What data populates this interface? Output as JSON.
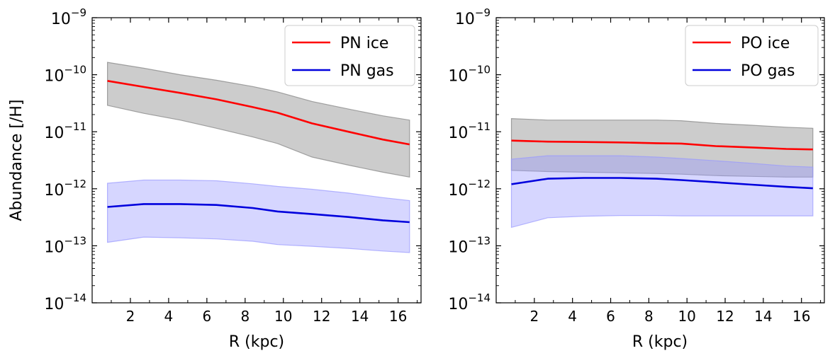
{
  "chart_data": [
    {
      "type": "line",
      "id": "pn",
      "xlabel": "R (kpc)",
      "ylabel": "Abundance [/H]",
      "yscale": "log",
      "xlim": [
        0,
        17.2
      ],
      "ylim_exp": [
        -14,
        -9
      ],
      "xticks": [
        2,
        4,
        6,
        8,
        10,
        12,
        14,
        16
      ],
      "xtick_labels": [
        "2",
        "4",
        "6",
        "8",
        "10",
        "12",
        "14",
        "16"
      ],
      "ytick_exps": [
        -14,
        -13,
        -12,
        -11,
        -10,
        -9
      ],
      "ytick_labels": [
        "10",
        "10",
        "10",
        "10",
        "10",
        "10"
      ],
      "ytick_sup": [
        "−14",
        "−13",
        "−12",
        "−11",
        "−10",
        "−9"
      ],
      "legend_position": "top-right",
      "series": [
        {
          "name": "PN ice",
          "color": "#ff0000",
          "band_color": "#808080",
          "x": [
            0.8,
            2.7,
            4.6,
            6.5,
            8.4,
            9.7,
            11.5,
            13.4,
            15.2,
            16.6
          ],
          "y": [
            7.8e-11,
            6.1e-11,
            4.8e-11,
            3.7e-11,
            2.7e-11,
            2.15e-11,
            1.4e-11,
            1e-11,
            7.3e-12,
            6e-12
          ],
          "upper": [
            1.65e-10,
            1.3e-10,
            1e-10,
            8e-11,
            6.2e-11,
            5e-11,
            3.4e-11,
            2.5e-11,
            1.9e-11,
            1.6e-11
          ],
          "lower": [
            2.9e-11,
            2.1e-11,
            1.6e-11,
            1.15e-11,
            8.1e-12,
            6.2e-12,
            3.6e-12,
            2.6e-12,
            1.95e-12,
            1.6e-12
          ]
        },
        {
          "name": "PN gas",
          "color": "#0000dd",
          "band_color": "#9999ff",
          "x": [
            0.8,
            2.7,
            4.6,
            6.5,
            8.4,
            9.7,
            11.5,
            13.4,
            15.2,
            16.6
          ],
          "y": [
            4.8e-13,
            5.4e-13,
            5.4e-13,
            5.2e-13,
            4.6e-13,
            4e-13,
            3.6e-13,
            3.2e-13,
            2.8e-13,
            2.6e-13
          ],
          "upper": [
            1.25e-12,
            1.42e-12,
            1.42e-12,
            1.38e-12,
            1.22e-12,
            1.1e-12,
            9.8e-13,
            8.4e-13,
            7e-13,
            6.2e-13
          ],
          "lower": [
            1.15e-13,
            1.42e-13,
            1.38e-13,
            1.32e-13,
            1.2e-13,
            1.05e-13,
            9.8e-14,
            9e-14,
            8.1e-14,
            7.6e-14
          ]
        }
      ]
    },
    {
      "type": "line",
      "id": "po",
      "xlabel": "R (kpc)",
      "ylabel": "",
      "yscale": "log",
      "xlim": [
        0,
        17.2
      ],
      "ylim_exp": [
        -14,
        -9
      ],
      "xticks": [
        2,
        4,
        6,
        8,
        10,
        12,
        14,
        16
      ],
      "xtick_labels": [
        "2",
        "4",
        "6",
        "8",
        "10",
        "12",
        "14",
        "16"
      ],
      "ytick_exps": [
        -14,
        -13,
        -12,
        -11,
        -10,
        -9
      ],
      "ytick_labels": [
        "10",
        "10",
        "10",
        "10",
        "10",
        "10"
      ],
      "ytick_sup": [
        "−14",
        "−13",
        "−12",
        "−11",
        "−10",
        "−9"
      ],
      "legend_position": "top-right",
      "series": [
        {
          "name": "PO ice",
          "color": "#ff0000",
          "band_color": "#808080",
          "x": [
            0.8,
            2.7,
            4.6,
            6.5,
            8.4,
            9.7,
            11.5,
            13.4,
            15.2,
            16.6
          ],
          "y": [
            7e-12,
            6.7e-12,
            6.6e-12,
            6.5e-12,
            6.3e-12,
            6.2e-12,
            5.6e-12,
            5.3e-12,
            5e-12,
            4.9e-12
          ],
          "upper": [
            1.7e-11,
            1.6e-11,
            1.6e-11,
            1.6e-11,
            1.6e-11,
            1.56e-11,
            1.4e-11,
            1.3e-11,
            1.2e-11,
            1.15e-11
          ],
          "lower": [
            2.1e-12,
            2e-12,
            1.95e-12,
            1.9e-12,
            1.85e-12,
            1.8e-12,
            1.7e-12,
            1.65e-12,
            1.6e-12,
            1.6e-12
          ]
        },
        {
          "name": "PO gas",
          "color": "#0000dd",
          "band_color": "#9999ff",
          "x": [
            0.8,
            2.7,
            4.6,
            6.5,
            8.4,
            9.7,
            11.5,
            13.4,
            15.2,
            16.6
          ],
          "y": [
            1.2e-12,
            1.5e-12,
            1.55e-12,
            1.55e-12,
            1.5e-12,
            1.42e-12,
            1.3e-12,
            1.18e-12,
            1.08e-12,
            1.02e-12
          ],
          "upper": [
            3.3e-12,
            3.8e-12,
            3.8e-12,
            3.8e-12,
            3.6e-12,
            3.4e-12,
            3.1e-12,
            2.8e-12,
            2.5e-12,
            2.4e-12
          ],
          "lower": [
            2.1e-13,
            3.1e-13,
            3.3e-13,
            3.4e-13,
            3.4e-13,
            3.35e-13,
            3.35e-13,
            3.35e-13,
            3.35e-13,
            3.35e-13
          ]
        }
      ]
    }
  ]
}
